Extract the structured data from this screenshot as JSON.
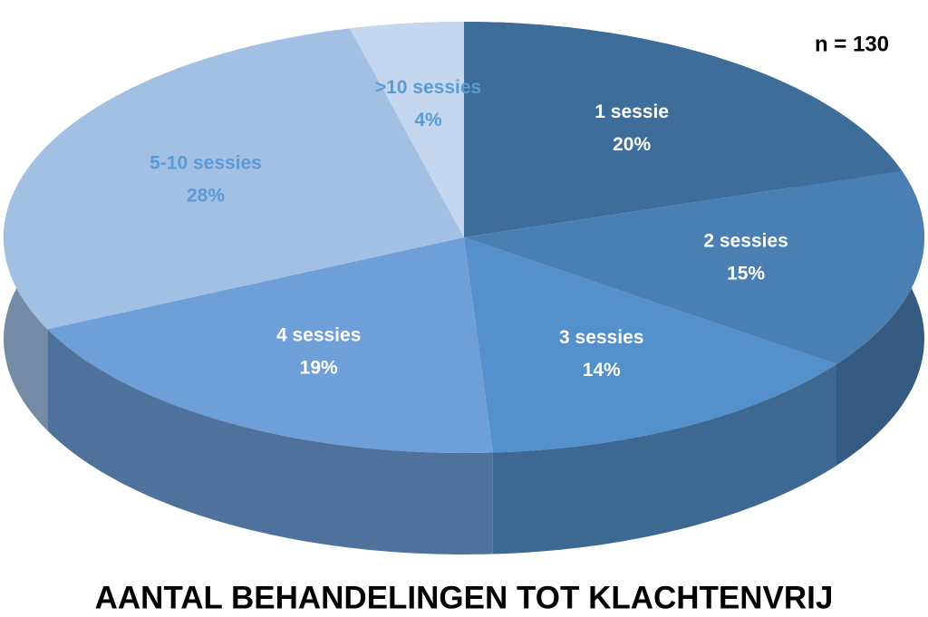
{
  "chart_data": {
    "type": "pie3d",
    "title": "AANTAL BEHANDELINGEN TOT KLACHTENVRIJ",
    "annotation": "n = 130",
    "categories": [
      "1 sessie",
      "2 sessies",
      "3 sessies",
      "4 sessies",
      "5-10 sessies",
      ">10 sessies"
    ],
    "values": [
      20,
      15,
      14,
      19,
      28,
      4
    ],
    "value_labels": [
      "20%",
      "15%",
      "14%",
      "19%",
      "28%",
      "4%"
    ],
    "colors": [
      "#3e6d9a",
      "#4a7fb4",
      "#5490cb",
      "#6e9fd8",
      "#a2bfe4",
      "#c5d7ee"
    ],
    "label_colors": [
      "#ffffff",
      "#ffffff",
      "#ffffff",
      "#ffffff",
      "#5b9bd5",
      "#5b9bd5"
    ]
  }
}
